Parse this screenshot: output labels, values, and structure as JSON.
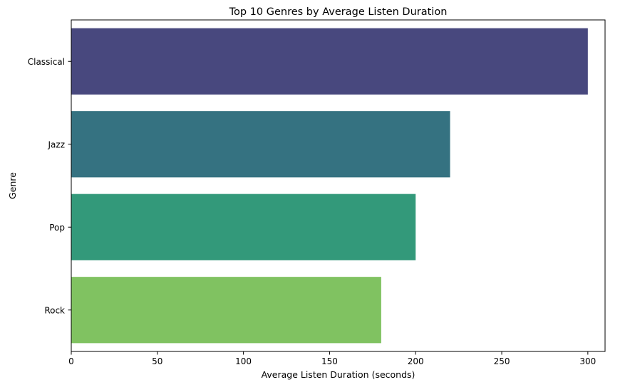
{
  "chart_data": {
    "type": "bar",
    "orientation": "horizontal",
    "title": "Top 10 Genres by Average Listen Duration",
    "xlabel": "Average Listen Duration (seconds)",
    "ylabel": "Genre",
    "categories": [
      "Classical",
      "Jazz",
      "Pop",
      "Rock"
    ],
    "values": [
      300,
      220,
      200,
      180
    ],
    "colors": [
      "#48487e",
      "#357281",
      "#33997a",
      "#80c261"
    ],
    "xlim": [
      0,
      310
    ],
    "xticks": [
      0,
      50,
      100,
      150,
      200,
      250,
      300
    ],
    "grid": false,
    "legend": "none"
  }
}
